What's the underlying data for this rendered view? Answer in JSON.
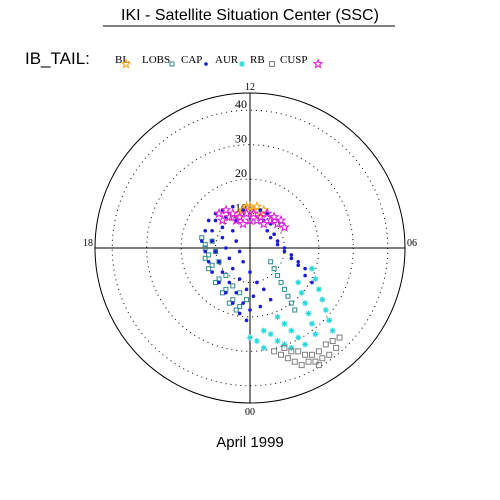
{
  "header": {
    "title": "IKI - Satellite Situation Center (SSC)",
    "region_label": "IB_TAIL:"
  },
  "legend": [
    {
      "label": "BL",
      "color": "#f5a623",
      "marker": "star-outline"
    },
    {
      "label": "LOBS",
      "color": "#2e8b8b",
      "marker": "square-small"
    },
    {
      "label": "CAP",
      "color": "#1a1ad8",
      "marker": "dot"
    },
    {
      "label": "AUR",
      "color": "#22d8d8",
      "marker": "asterisk"
    },
    {
      "label": "RB",
      "color": "#808080",
      "marker": "square-outline"
    },
    {
      "label": "CUSP",
      "color": "#e020e0",
      "marker": "star-outline"
    }
  ],
  "footer": {
    "date": "April 1999"
  },
  "chart_data": {
    "type": "scatter",
    "projection": "polar",
    "r_ticks": [
      10,
      20,
      30,
      40
    ],
    "r_max": 45,
    "angle_labels": {
      "top": "12",
      "right": "06",
      "bottom": "00",
      "left": "18"
    },
    "grid": "dotted rings",
    "series": [
      {
        "name": "BL",
        "color": "#f5a623",
        "points": [
          [
            -2,
            11
          ],
          [
            -1,
            12
          ],
          [
            0,
            12
          ],
          [
            1,
            11
          ],
          [
            2,
            12
          ],
          [
            3,
            10
          ],
          [
            -3,
            10
          ],
          [
            4,
            11
          ]
        ]
      },
      {
        "name": "LOBS",
        "color": "#2e8b8b",
        "points": [
          [
            -14,
            3
          ],
          [
            -13,
            0
          ],
          [
            -13,
            -3
          ],
          [
            -12,
            -6
          ],
          [
            -10,
            -10
          ],
          [
            -8,
            -13
          ],
          [
            -6,
            -16
          ],
          [
            -4,
            -18
          ],
          [
            -13,
            1
          ],
          [
            -12,
            -2
          ],
          [
            -11,
            -5
          ],
          [
            -9,
            -9
          ],
          [
            -7,
            -12
          ],
          [
            -5,
            -15
          ],
          [
            -3,
            -17
          ],
          [
            -11,
            2
          ],
          [
            -10,
            -1
          ],
          [
            -9,
            -4
          ],
          [
            -7,
            -8
          ],
          [
            -5,
            -11
          ],
          [
            -3,
            -13
          ],
          [
            -1,
            -15
          ],
          [
            6,
            -4
          ],
          [
            7,
            -6
          ],
          [
            8,
            -8
          ],
          [
            9,
            -10
          ],
          [
            10,
            -12
          ],
          [
            11,
            -14
          ],
          [
            12,
            -16
          ],
          [
            13,
            -18
          ]
        ]
      },
      {
        "name": "CAP",
        "color": "#1a1ad8",
        "points": [
          [
            -10,
            10
          ],
          [
            -12,
            8
          ],
          [
            -13,
            5
          ],
          [
            -14,
            2
          ],
          [
            -13,
            -1
          ],
          [
            -12,
            -4
          ],
          [
            -11,
            -7
          ],
          [
            -9,
            -10
          ],
          [
            -7,
            -13
          ],
          [
            -5,
            -16
          ],
          [
            -3,
            -19
          ],
          [
            -1,
            -21
          ],
          [
            -8,
            11
          ],
          [
            -10,
            8
          ],
          [
            -11,
            5
          ],
          [
            -11,
            2
          ],
          [
            -10,
            -1
          ],
          [
            -9,
            -4
          ],
          [
            -8,
            -7
          ],
          [
            -6,
            -10
          ],
          [
            -4,
            -13
          ],
          [
            -2,
            -16
          ],
          [
            0,
            -18
          ],
          [
            -5,
            12
          ],
          [
            -7,
            9
          ],
          [
            -8,
            6
          ],
          [
            -8,
            3
          ],
          [
            -7,
            0
          ],
          [
            -6,
            -3
          ],
          [
            -5,
            -6
          ],
          [
            -3,
            -9
          ],
          [
            -1,
            -12
          ],
          [
            1,
            -14
          ],
          [
            3,
            -17
          ],
          [
            -2,
            11
          ],
          [
            -4,
            8
          ],
          [
            -5,
            5
          ],
          [
            -4,
            2
          ],
          [
            -3,
            -1
          ],
          [
            -2,
            -4
          ],
          [
            0,
            -7
          ],
          [
            2,
            -10
          ],
          [
            4,
            -12
          ],
          [
            6,
            -15
          ],
          [
            5,
            10
          ],
          [
            6,
            7
          ],
          [
            7,
            4
          ],
          [
            8,
            2
          ],
          [
            10,
            0
          ],
          [
            12,
            -2
          ],
          [
            14,
            -4
          ],
          [
            16,
            -6
          ],
          [
            3,
            11
          ],
          [
            4,
            8
          ],
          [
            5,
            5
          ],
          [
            6,
            3
          ],
          [
            8,
            1
          ],
          [
            10,
            -1
          ],
          [
            12,
            -3
          ],
          [
            14,
            -5
          ],
          [
            16,
            -8
          ],
          [
            18,
            -10
          ]
        ]
      },
      {
        "name": "AUR",
        "color": "#22d8d8",
        "points": [
          [
            18,
            -6
          ],
          [
            19,
            -9
          ],
          [
            20,
            -12
          ],
          [
            21,
            -15
          ],
          [
            22,
            -18
          ],
          [
            23,
            -21
          ],
          [
            24,
            -24
          ],
          [
            14,
            -10
          ],
          [
            15,
            -13
          ],
          [
            16,
            -16
          ],
          [
            17,
            -19
          ],
          [
            18,
            -22
          ],
          [
            19,
            -25
          ],
          [
            8,
            -20
          ],
          [
            10,
            -22
          ],
          [
            12,
            -24
          ],
          [
            14,
            -26
          ],
          [
            16,
            -28
          ],
          [
            4,
            -24
          ],
          [
            6,
            -25
          ],
          [
            8,
            -27
          ],
          [
            10,
            -28
          ],
          [
            12,
            -29
          ],
          [
            0,
            -26
          ],
          [
            2,
            -27
          ],
          [
            4,
            -29
          ]
        ]
      },
      {
        "name": "RB",
        "color": "#808080",
        "points": [
          [
            24,
            -27
          ],
          [
            25,
            -29
          ],
          [
            23,
            -31
          ],
          [
            21,
            -32
          ],
          [
            19,
            -33
          ],
          [
            17,
            -33
          ],
          [
            15,
            -34
          ],
          [
            13,
            -33
          ],
          [
            11,
            -32
          ],
          [
            9,
            -31
          ],
          [
            7,
            -30
          ],
          [
            20,
            -30
          ],
          [
            22,
            -28
          ],
          [
            18,
            -31
          ],
          [
            16,
            -31
          ],
          [
            14,
            -30
          ],
          [
            12,
            -30
          ],
          [
            10,
            -29
          ],
          [
            26,
            -26
          ],
          [
            20,
            -34
          ]
        ]
      },
      {
        "name": "CUSP",
        "color": "#e020e0",
        "points": [
          [
            -9,
            10
          ],
          [
            -7,
            11
          ],
          [
            -5,
            10
          ],
          [
            -3,
            9
          ],
          [
            -1,
            10
          ],
          [
            1,
            10
          ],
          [
            3,
            9
          ],
          [
            5,
            10
          ],
          [
            7,
            9
          ],
          [
            9,
            8
          ],
          [
            -8,
            8
          ],
          [
            -6,
            9
          ],
          [
            -4,
            8
          ],
          [
            -2,
            7
          ],
          [
            0,
            8
          ],
          [
            2,
            8
          ],
          [
            4,
            7
          ],
          [
            6,
            8
          ],
          [
            8,
            7
          ],
          [
            10,
            6
          ]
        ]
      }
    ]
  }
}
